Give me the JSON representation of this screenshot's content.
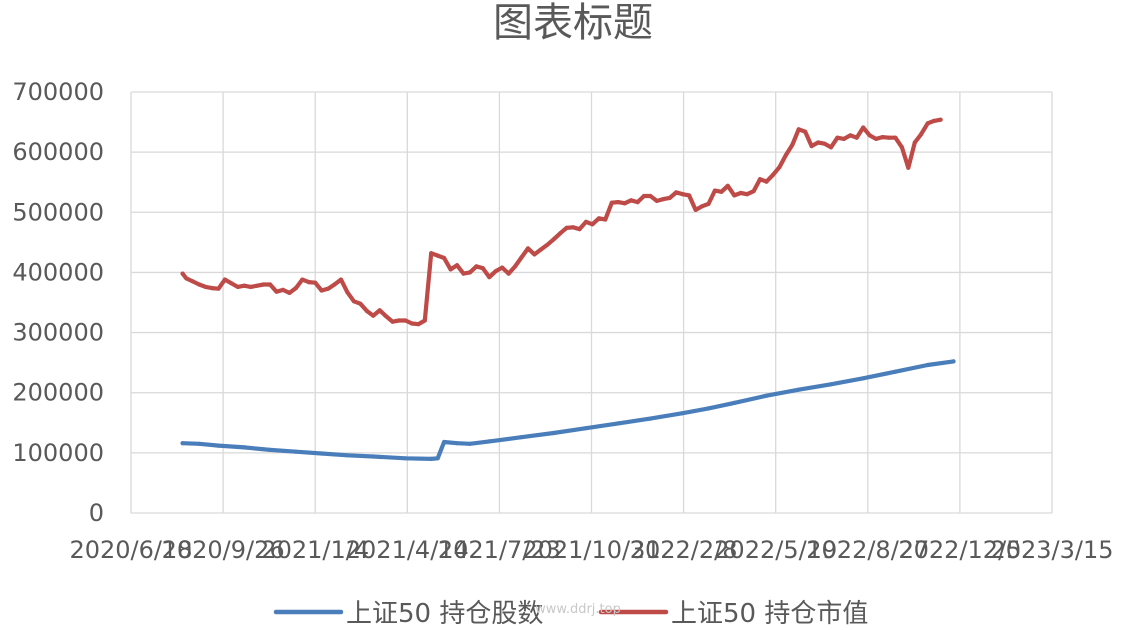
{
  "chart_data": {
    "type": "line",
    "title": "图表标题",
    "xlabel": "",
    "ylabel": "",
    "x_axis": {
      "type": "date",
      "range": [
        "2020-06-18",
        "2023-03-15"
      ],
      "tick_labels": [
        "2020/6/18",
        "2020/9/26",
        "2021/1/4",
        "2021/4/14",
        "2021/7/23",
        "2021/10/31",
        "2022/2/8",
        "2022/5/19",
        "2022/8/27",
        "2022/12/5",
        "2023/3/15"
      ]
    },
    "ylim": [
      0,
      700000
    ],
    "y_ticks": [
      0,
      100000,
      200000,
      300000,
      400000,
      500000,
      600000,
      700000
    ],
    "y_tick_labels": [
      "0",
      "100000",
      "200000",
      "300000",
      "400000",
      "500000",
      "600000",
      "700000"
    ],
    "grid": true,
    "legend_position": "bottom",
    "series": [
      {
        "name": "上证50 持仓股数",
        "color": "#4a7ebb",
        "points": [
          [
            "2020-08-13",
            116000
          ],
          [
            "2020-08-31",
            115000
          ],
          [
            "2020-09-21",
            112000
          ],
          [
            "2020-10-19",
            109000
          ],
          [
            "2020-11-16",
            105000
          ],
          [
            "2020-12-14",
            102000
          ],
          [
            "2021-01-11",
            99000
          ],
          [
            "2021-02-08",
            96000
          ],
          [
            "2021-03-08",
            94000
          ],
          [
            "2021-04-12",
            91000
          ],
          [
            "2021-05-10",
            90000
          ],
          [
            "2021-05-17",
            91000
          ],
          [
            "2021-05-24",
            118000
          ],
          [
            "2021-06-07",
            116000
          ],
          [
            "2021-06-21",
            115000
          ],
          [
            "2021-07-12",
            119000
          ],
          [
            "2021-08-16",
            126000
          ],
          [
            "2021-09-20",
            133000
          ],
          [
            "2021-10-25",
            141000
          ],
          [
            "2021-11-29",
            149000
          ],
          [
            "2022-01-03",
            157000
          ],
          [
            "2022-02-07",
            166000
          ],
          [
            "2022-03-07",
            174000
          ],
          [
            "2022-04-04",
            183000
          ],
          [
            "2022-05-09",
            195000
          ],
          [
            "2022-06-13",
            205000
          ],
          [
            "2022-07-18",
            214000
          ],
          [
            "2022-08-22",
            224000
          ],
          [
            "2022-09-26",
            235000
          ],
          [
            "2022-10-31",
            246000
          ],
          [
            "2022-11-28",
            252000
          ]
        ]
      },
      {
        "name": "上证50 持仓市值",
        "color": "#be4b48",
        "points": [
          [
            "2020-08-13",
            398000
          ],
          [
            "2020-08-17",
            390000
          ],
          [
            "2020-08-24",
            385000
          ],
          [
            "2020-08-31",
            380000
          ],
          [
            "2020-09-07",
            376000
          ],
          [
            "2020-09-14",
            374000
          ],
          [
            "2020-09-21",
            373000
          ],
          [
            "2020-09-28",
            388000
          ],
          [
            "2020-10-05",
            382000
          ],
          [
            "2020-10-12",
            376000
          ],
          [
            "2020-10-19",
            378000
          ],
          [
            "2020-10-26",
            376000
          ],
          [
            "2020-11-02",
            378000
          ],
          [
            "2020-11-09",
            380000
          ],
          [
            "2020-11-16",
            380000
          ],
          [
            "2020-11-23",
            368000
          ],
          [
            "2020-11-30",
            371000
          ],
          [
            "2020-12-07",
            366000
          ],
          [
            "2020-12-14",
            374000
          ],
          [
            "2020-12-21",
            388000
          ],
          [
            "2020-12-28",
            384000
          ],
          [
            "2021-01-04",
            383000
          ],
          [
            "2021-01-11",
            370000
          ],
          [
            "2021-01-18",
            373000
          ],
          [
            "2021-01-25",
            380000
          ],
          [
            "2021-02-01",
            388000
          ],
          [
            "2021-02-08",
            367000
          ],
          [
            "2021-02-15",
            352000
          ],
          [
            "2021-02-22",
            348000
          ],
          [
            "2021-03-01",
            336000
          ],
          [
            "2021-03-08",
            328000
          ],
          [
            "2021-03-15",
            337000
          ],
          [
            "2021-03-22",
            327000
          ],
          [
            "2021-03-29",
            318000
          ],
          [
            "2021-04-05",
            320000
          ],
          [
            "2021-04-12",
            320000
          ],
          [
            "2021-04-19",
            315000
          ],
          [
            "2021-04-26",
            314000
          ],
          [
            "2021-05-03",
            320000
          ],
          [
            "2021-05-10",
            432000
          ],
          [
            "2021-05-17",
            428000
          ],
          [
            "2021-05-24",
            424000
          ],
          [
            "2021-05-31",
            405000
          ],
          [
            "2021-06-07",
            412000
          ],
          [
            "2021-06-14",
            398000
          ],
          [
            "2021-06-21",
            400000
          ],
          [
            "2021-06-28",
            410000
          ],
          [
            "2021-07-05",
            407000
          ],
          [
            "2021-07-12",
            392000
          ],
          [
            "2021-07-19",
            402000
          ],
          [
            "2021-07-26",
            408000
          ],
          [
            "2021-08-02",
            398000
          ],
          [
            "2021-08-09",
            410000
          ],
          [
            "2021-08-16",
            425000
          ],
          [
            "2021-08-23",
            440000
          ],
          [
            "2021-08-30",
            430000
          ],
          [
            "2021-09-06",
            438000
          ],
          [
            "2021-09-13",
            446000
          ],
          [
            "2021-09-20",
            455000
          ],
          [
            "2021-09-27",
            465000
          ],
          [
            "2021-10-04",
            474000
          ],
          [
            "2021-10-11",
            475000
          ],
          [
            "2021-10-18",
            472000
          ],
          [
            "2021-10-25",
            484000
          ],
          [
            "2021-11-01",
            480000
          ],
          [
            "2021-11-08",
            490000
          ],
          [
            "2021-11-15",
            488000
          ],
          [
            "2021-11-22",
            516000
          ],
          [
            "2021-11-29",
            517000
          ],
          [
            "2021-12-06",
            515000
          ],
          [
            "2021-12-13",
            520000
          ],
          [
            "2021-12-20",
            517000
          ],
          [
            "2021-12-27",
            527000
          ],
          [
            "2022-01-03",
            527000
          ],
          [
            "2022-01-10",
            519000
          ],
          [
            "2022-01-17",
            522000
          ],
          [
            "2022-01-24",
            524000
          ],
          [
            "2022-01-31",
            533000
          ],
          [
            "2022-02-07",
            530000
          ],
          [
            "2022-02-14",
            528000
          ],
          [
            "2022-02-21",
            504000
          ],
          [
            "2022-02-28",
            510000
          ],
          [
            "2022-03-07",
            514000
          ],
          [
            "2022-03-14",
            536000
          ],
          [
            "2022-03-21",
            534000
          ],
          [
            "2022-03-28",
            544000
          ],
          [
            "2022-04-04",
            528000
          ],
          [
            "2022-04-11",
            532000
          ],
          [
            "2022-04-18",
            530000
          ],
          [
            "2022-04-25",
            535000
          ],
          [
            "2022-05-02",
            555000
          ],
          [
            "2022-05-09",
            551000
          ],
          [
            "2022-05-16",
            562000
          ],
          [
            "2022-05-23",
            575000
          ],
          [
            "2022-05-30",
            595000
          ],
          [
            "2022-06-06",
            612000
          ],
          [
            "2022-06-13",
            638000
          ],
          [
            "2022-06-20",
            634000
          ],
          [
            "2022-06-27",
            610000
          ],
          [
            "2022-07-04",
            616000
          ],
          [
            "2022-07-11",
            614000
          ],
          [
            "2022-07-18",
            608000
          ],
          [
            "2022-07-25",
            624000
          ],
          [
            "2022-08-01",
            622000
          ],
          [
            "2022-08-08",
            628000
          ],
          [
            "2022-08-15",
            624000
          ],
          [
            "2022-08-22",
            641000
          ],
          [
            "2022-08-29",
            628000
          ],
          [
            "2022-09-05",
            622000
          ],
          [
            "2022-09-12",
            625000
          ],
          [
            "2022-09-19",
            624000
          ],
          [
            "2022-09-26",
            624000
          ],
          [
            "2022-10-03",
            608000
          ],
          [
            "2022-10-10",
            574000
          ],
          [
            "2022-10-17",
            616000
          ],
          [
            "2022-10-24",
            630000
          ],
          [
            "2022-10-31",
            648000
          ],
          [
            "2022-11-07",
            652000
          ],
          [
            "2022-11-14",
            654000
          ]
        ]
      }
    ],
    "watermark": "www.ddrj.top"
  }
}
